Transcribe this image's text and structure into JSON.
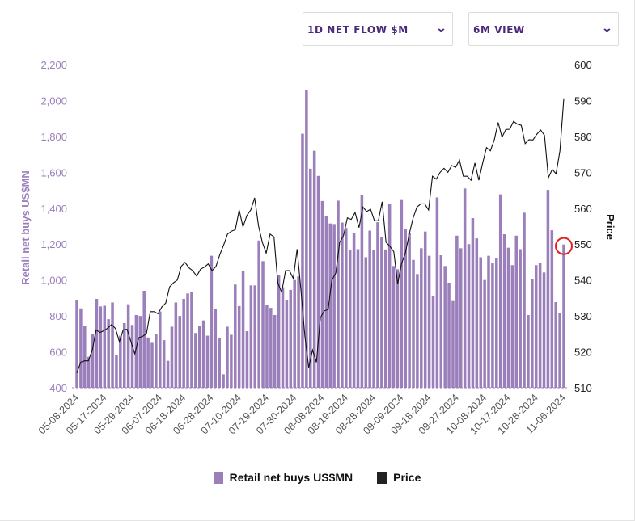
{
  "controls": {
    "metric_select": "1D NET FLOW $M",
    "range_select": "6M VIEW"
  },
  "colors": {
    "bars": "#9a7fbb",
    "price": "#111111",
    "left_axis": "#9a7fbb",
    "highlight": "#e02020"
  },
  "chart_data": {
    "type": "bar+line",
    "y_left": {
      "label": "Retail net buys US$MN",
      "range": [
        400,
        2200
      ],
      "ticks": [
        "400",
        "600",
        "800",
        "1,000",
        "1,200",
        "1,400",
        "1,600",
        "1,800",
        "2,000",
        "2,200"
      ]
    },
    "y_right": {
      "label": "Price",
      "range": [
        510,
        600
      ],
      "ticks": [
        "510",
        "520",
        "530",
        "540",
        "550",
        "560",
        "570",
        "580",
        "590",
        "600"
      ]
    },
    "x_ticks": [
      "05-08-2024",
      "05-17-2024",
      "05-29-2024",
      "06-07-2024",
      "06-18-2024",
      "06-28-2024",
      "07-10-2024",
      "07-19-2024",
      "07-30-2024",
      "08-08-2024",
      "08-19-2024",
      "08-28-2024",
      "09-09-2024",
      "09-18-2024",
      "09-27-2024",
      "10-08-2024",
      "10-17-2024",
      "10-28-2024",
      "11-06-2024"
    ],
    "grid": false,
    "legend_position": "bottom",
    "series": [
      {
        "name": "Retail net buys US$MN",
        "type": "bar",
        "axis": "left",
        "values": [
          887,
          842,
          745,
          572,
          700,
          895,
          853,
          857,
          782,
          875,
          580,
          690,
          760,
          865,
          750,
          805,
          800,
          940,
          680,
          650,
          700,
          825,
          665,
          550,
          740,
          875,
          800,
          895,
          925,
          935,
          705,
          745,
          775,
          690,
          1135,
          840,
          675,
          475,
          740,
          695,
          975,
          855,
          1048,
          715,
          970,
          970,
          1220,
          1105,
          860,
          845,
          805,
          1030,
          960,
          890,
          945,
          1000,
          1020,
          1815,
          2060,
          1620,
          1720,
          1580,
          1440,
          1355,
          1315,
          1312,
          1442,
          1320,
          1290,
          1165,
          1260,
          1172,
          1472,
          1127,
          1275,
          1165,
          1322,
          1240,
          1170,
          1423,
          1078,
          1060,
          1450,
          1285,
          1260,
          1112,
          1033,
          1177,
          1270,
          1135,
          910,
          1460,
          1138,
          1078,
          985,
          883,
          1247,
          1177,
          1510,
          1200,
          1345,
          1232,
          1127,
          1000,
          1135,
          1093,
          1120,
          1477,
          1255,
          1180,
          1083,
          1247,
          1172,
          1375,
          805,
          1007,
          1083,
          1095,
          1042,
          1502,
          1277,
          877,
          817,
          1198
        ]
      },
      {
        "name": "Price",
        "type": "line",
        "axis": "right",
        "values": [
          514.1,
          517.1,
          517.5,
          517.5,
          520.5,
          526.1,
          525.4,
          525.9,
          526.6,
          527.6,
          526.5,
          522.8,
          526.1,
          526.3,
          522.8,
          519.4,
          523.9,
          524.3,
          525.0,
          531.2,
          531.2,
          530.6,
          532.5,
          533.6,
          538.1,
          539.2,
          540,
          543.8,
          544.9,
          543.4,
          542.6,
          541.1,
          543,
          543.6,
          544.5,
          542.6,
          543.8,
          547.1,
          549.8,
          552.8,
          553.6,
          554,
          559.5,
          554.8,
          558,
          559.5,
          562.9,
          555.1,
          550.5,
          547.5,
          552.8,
          552,
          539.2,
          536.6,
          542.6,
          542.6,
          540.4,
          548.6,
          537,
          524.3,
          515.6,
          520.5,
          517.1,
          529.5,
          531.4,
          531.8,
          540,
          541.9,
          550.5,
          552.4,
          557.3,
          556.9,
          558.8,
          554.6,
          560.3,
          559.1,
          559.7,
          556.5,
          556.5,
          561.8,
          550.5,
          549.4,
          547.9,
          538.9,
          544.5,
          547.5,
          552.8,
          557.3,
          560.3,
          561.2,
          561.2,
          559.5,
          568.9,
          568.1,
          570,
          571.1,
          570,
          571.9,
          571.4,
          573.4,
          568.9,
          568.9,
          567.8,
          572.6,
          567.8,
          572.6,
          576.9,
          576,
          579,
          583.9,
          579.8,
          581.9,
          582,
          584.2,
          583.4,
          583.1,
          578,
          579.1,
          579,
          580.6,
          581.8,
          580.3,
          568.5,
          570.8,
          569.6,
          576,
          590.6
        ]
      }
    ],
    "highlight": "last bar circled"
  }
}
